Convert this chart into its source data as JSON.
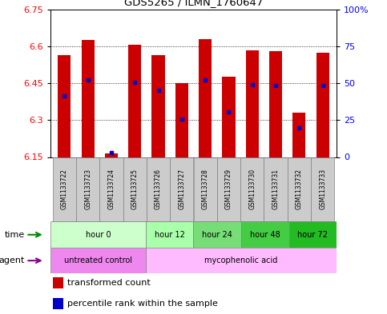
{
  "title": "GDS5265 / ILMN_1760647",
  "samples": [
    "GSM1133722",
    "GSM1133723",
    "GSM1133724",
    "GSM1133725",
    "GSM1133726",
    "GSM1133727",
    "GSM1133728",
    "GSM1133729",
    "GSM1133730",
    "GSM1133731",
    "GSM1133732",
    "GSM1133733"
  ],
  "bar_bottom": 6.15,
  "bar_tops": [
    6.565,
    6.625,
    6.165,
    6.605,
    6.565,
    6.45,
    6.628,
    6.478,
    6.585,
    6.582,
    6.33,
    6.575
  ],
  "blue_values": [
    6.4,
    6.465,
    6.168,
    6.455,
    6.42,
    6.305,
    6.465,
    6.335,
    6.445,
    6.44,
    6.268,
    6.44
  ],
  "ylim_min": 6.15,
  "ylim_max": 6.75,
  "yticks_left": [
    6.15,
    6.3,
    6.45,
    6.6,
    6.75
  ],
  "yticks_right_vals": [
    0,
    25,
    50,
    75,
    100
  ],
  "bar_color": "#cc0000",
  "blue_color": "#0000cc",
  "time_groups": [
    {
      "label": "hour 0",
      "start": 0,
      "end": 4,
      "color": "#ccffcc"
    },
    {
      "label": "hour 12",
      "start": 4,
      "end": 6,
      "color": "#aaffaa"
    },
    {
      "label": "hour 24",
      "start": 6,
      "end": 8,
      "color": "#77dd77"
    },
    {
      "label": "hour 48",
      "start": 8,
      "end": 10,
      "color": "#44cc44"
    },
    {
      "label": "hour 72",
      "start": 10,
      "end": 12,
      "color": "#22bb22"
    }
  ],
  "agent_groups": [
    {
      "label": "untreated control",
      "start": 0,
      "end": 4,
      "color": "#ee88ee"
    },
    {
      "label": "mycophenolic acid",
      "start": 4,
      "end": 12,
      "color": "#ffbbff"
    }
  ],
  "sample_bg_color": "#cccccc",
  "legend_red_label": "transformed count",
  "legend_blue_label": "percentile rank within the sample",
  "time_label": "time",
  "agent_label": "agent",
  "fig_width": 4.83,
  "fig_height": 3.93,
  "dpi": 100
}
